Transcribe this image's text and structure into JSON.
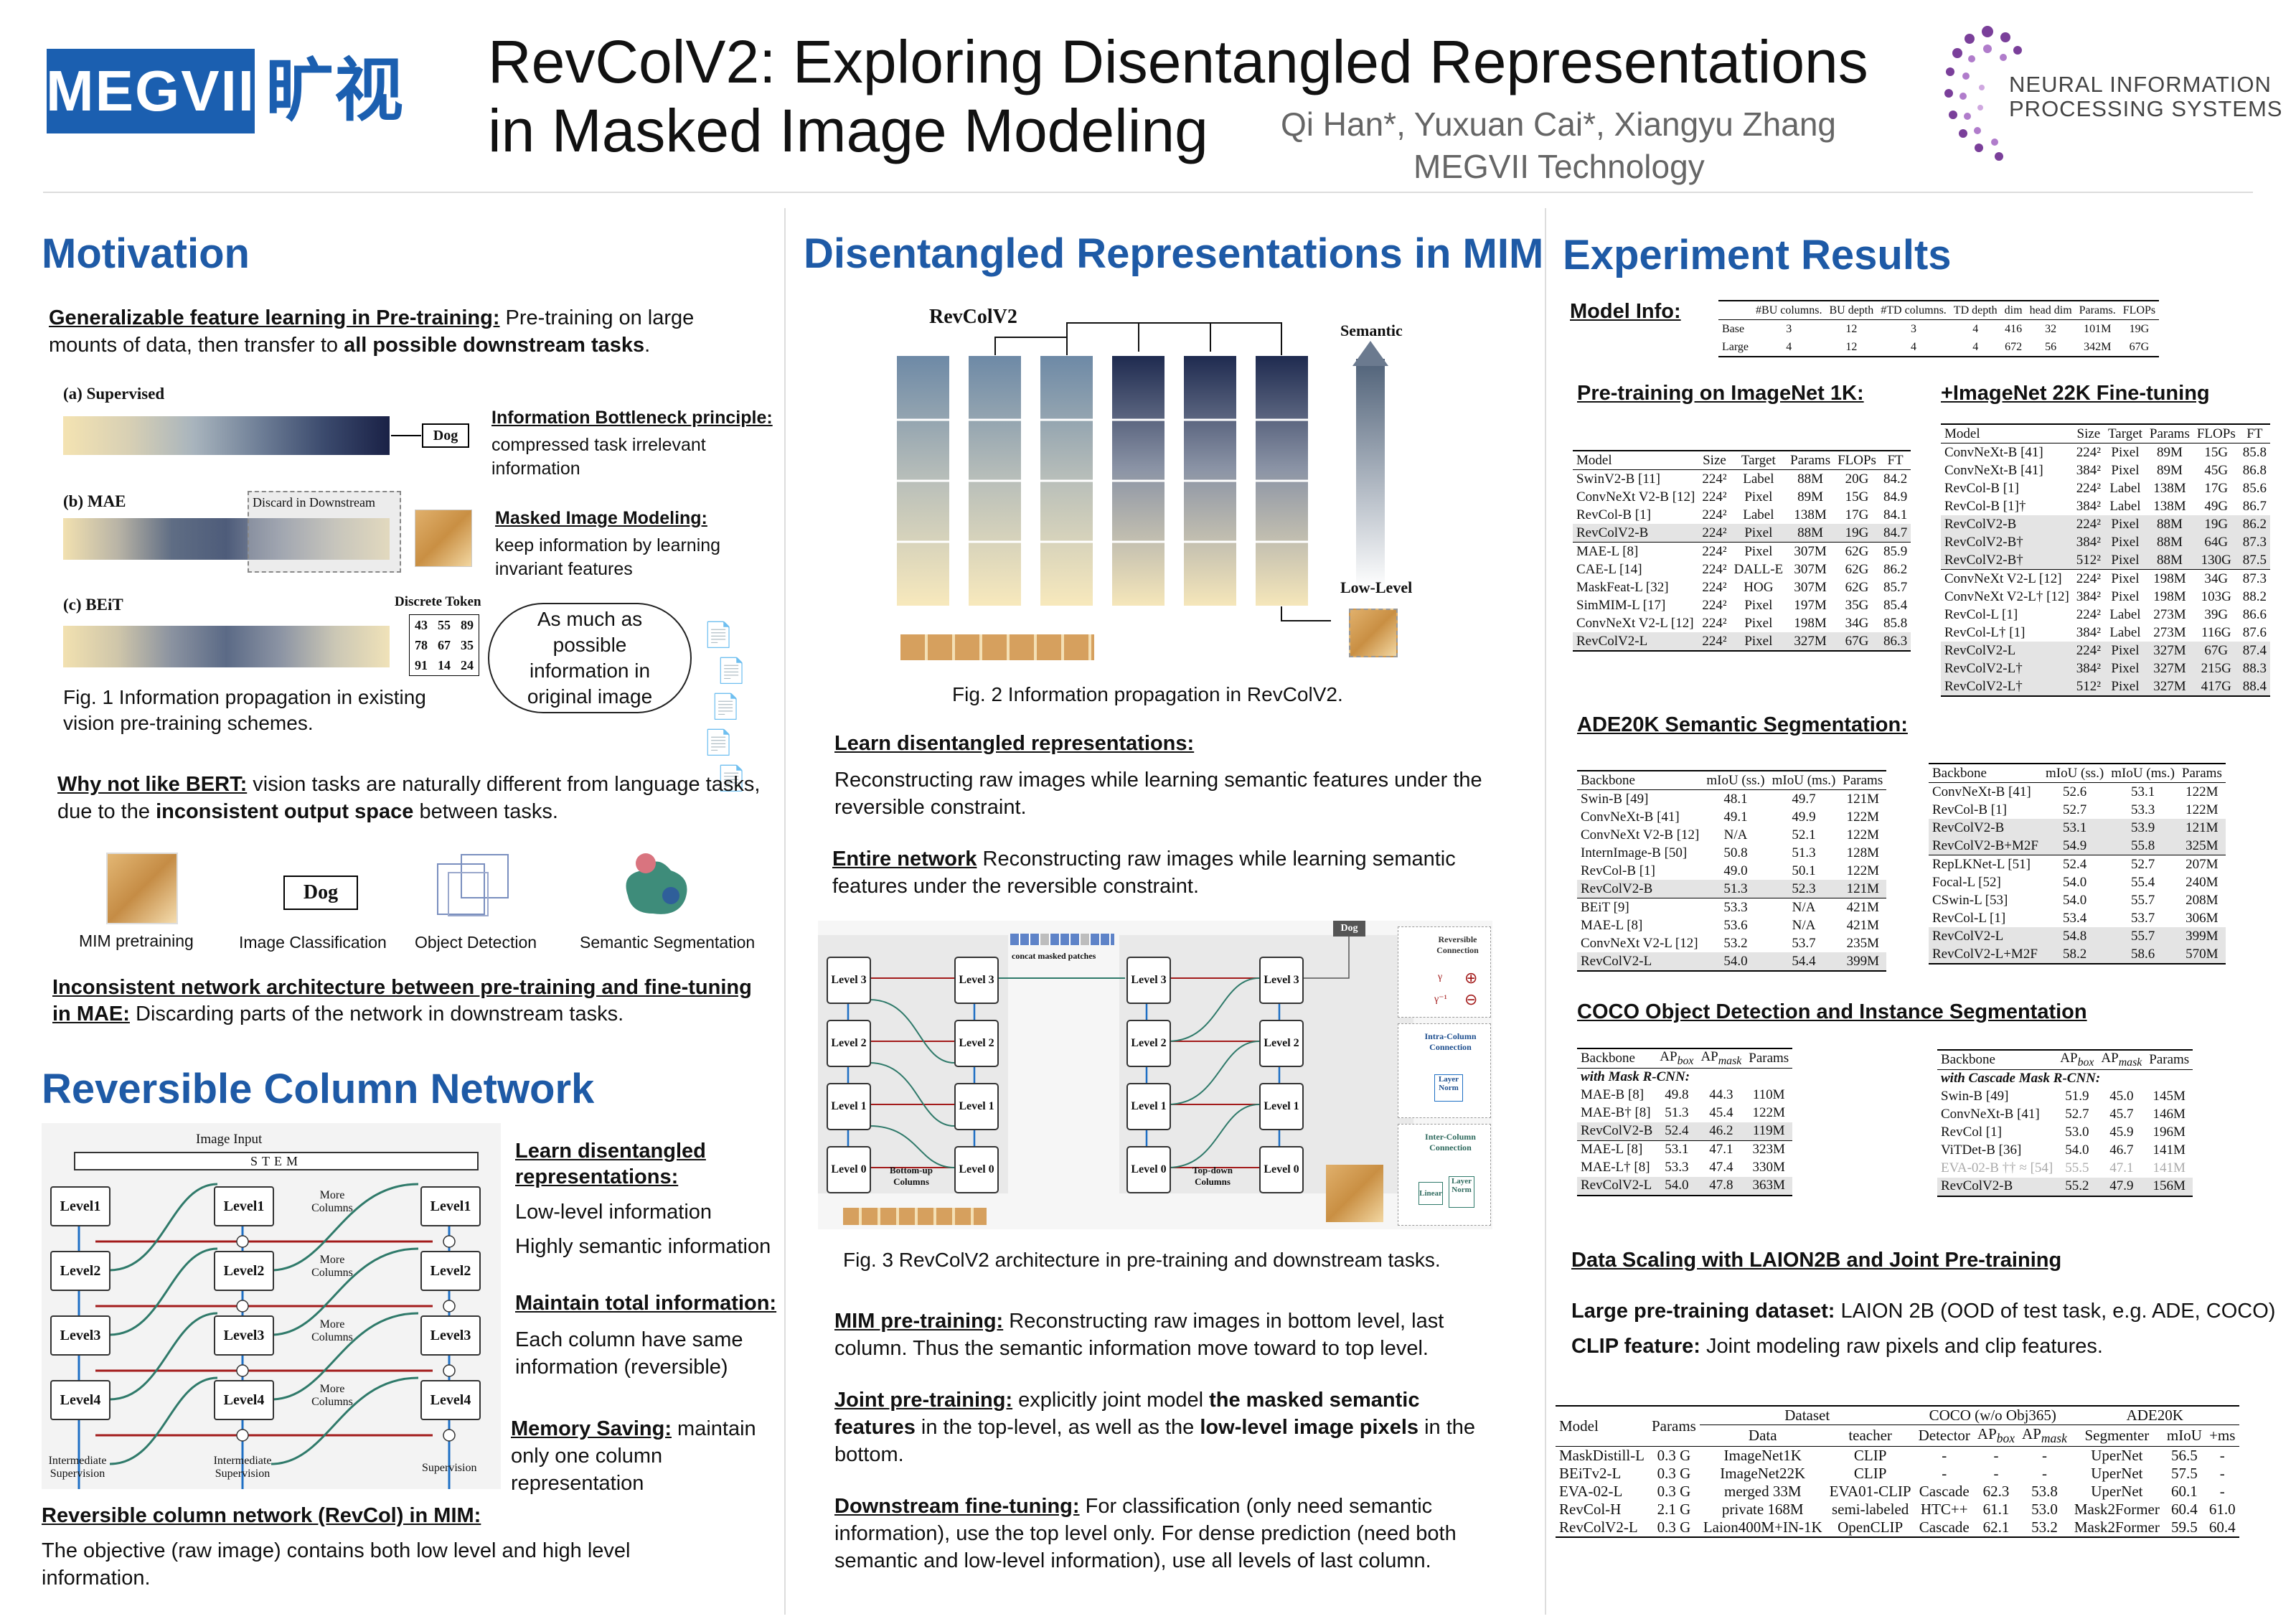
{
  "header": {
    "logo_text": "MEGVII",
    "logo_cn": "旷视",
    "title_line1": "RevColV2: Exploring Disentangled Representations",
    "title_line2": "in Masked Image Modeling",
    "authors": "Qi Han*, Yuxuan Cai*,  Xiangyu Zhang",
    "affiliation": "MEGVII Technology",
    "neurips_line1": "NEURAL INFORMATION",
    "neurips_line2": "PROCESSING SYSTEMS"
  },
  "motivation": {
    "title": "Motivation",
    "gen_label": "Generalizable feature learning in Pre-training:",
    "gen_text1": " Pre-training on large",
    "gen_text2": "mounts of data, then transfer to ",
    "gen_bold": "all possible downstream tasks",
    "gen_end": ".",
    "fig1": {
      "sup": "(a) Supervised",
      "dog": "Dog",
      "mae": "(b) MAE",
      "discard": "Discard in Downstream",
      "beit": "(c) BEiT",
      "discrete": "Discrete Token",
      "tokens": [
        "43",
        "55",
        "89",
        "78",
        "67",
        "35",
        "91",
        "14",
        "24"
      ],
      "bubble": "As much as possible information in original image",
      "caption": "Fig. 1 Information propagation in existing vision pre-training schemes."
    },
    "ib_title": "Information Bottleneck principle:",
    "ib_text": "compressed task irrelevant information",
    "mim_title": "Masked Image Modeling:",
    "mim_text": "keep information by learning invariant features",
    "bert_label": "Why not like BERT:",
    "bert_text1": " vision tasks are naturally different from language tasks,",
    "bert_text2": "due to the ",
    "bert_bold": "inconsistent output space",
    "bert_end": " between tasks.",
    "tasks": [
      "MIM pretraining",
      "Image Classification",
      "Object Detection",
      "Semantic Segmentation"
    ],
    "task_dog": "Dog",
    "incons_title1": "Inconsistent network architecture between pre-training and fine-tuning",
    "incons_title2": "in MAE:",
    "incons_text": " Discarding parts of the network in downstream tasks."
  },
  "revcol": {
    "title": "Reversible Column Network",
    "image_input": "Image Input",
    "stem": "STEM",
    "levels": [
      "Level1",
      "Level2",
      "Level3",
      "Level4"
    ],
    "more": "More Columns",
    "inter_sup": "Intermediate Supervision",
    "sup": "Supervision",
    "learn_title": "Learn disentangled representations:",
    "low": "Low-level information",
    "high": "Highly semantic information",
    "maintain_title": "Maintain total information:",
    "maintain_text": "Each column have same information (reversible)",
    "mem_title": "Memory Saving:",
    "mem_text": " maintain only one column representation",
    "mim_title": "Reversible column network (RevCol) in MIM:",
    "mim_text": "The objective (raw image) contains both low level and high level information."
  },
  "dis": {
    "title": "Disentangled Representations in MIM",
    "fig2_label": "RevColV2",
    "semantic": "Semantic",
    "lowlevel": "Low-Level",
    "fig2_caption": "Fig. 2 Information propagation in RevColV2.",
    "learn_title": "Learn disentangled representations:",
    "learn_text": "Reconstructing raw images while learning semantic features under the reversible constraint.",
    "entire_title": "Entire network",
    "entire_text": " Reconstructing raw images while learning semantic features under the reversible constraint.",
    "fig3": {
      "concat": "concat masked patches",
      "dog": "Dog",
      "levels": [
        "Level 3",
        "Level 2",
        "Level 1",
        "Level 0"
      ],
      "bottom": "Bottom-up Columns",
      "topdown": "Top-down Columns",
      "rev_conn": "Reversible Connection",
      "gamma1": "γ",
      "gamma2": "γ⁻¹",
      "intra": "Intra-Column Connection",
      "layer_norm": "Layer Norm",
      "inter": "Inter-Column Connection",
      "linear": "Linear"
    },
    "fig3_caption": "Fig. 3 RevColV2 architecture in pre-training and downstream tasks.",
    "mim_title": "MIM pre-training:",
    "mim_text": " Reconstructing raw images in bottom level, last column. Thus the semantic information move toward to top level.",
    "joint_title": "Joint pre-training:",
    "joint_t1": " explicitly joint model ",
    "joint_b1": "the masked semantic features",
    "joint_t2": " in the top-level, as well as the ",
    "joint_b2": "low-level image pixels",
    "joint_t3": " in the bottom.",
    "down_title": "Downstream fine-tuning:",
    "down_text": " For classification (only need semantic information), use the top level only. For dense prediction (need both semantic and low-level information), use all levels of last column."
  },
  "exp": {
    "title": "Experiment Results",
    "model_info": "Model Info:",
    "mi_head": [
      "#BU columns.",
      "BU depth",
      "#TD columns.",
      "TD depth",
      "dim",
      "head dim",
      "Params.",
      "FLOPs"
    ],
    "mi_rows": [
      [
        "Base",
        "3",
        "12",
        "3",
        "4",
        "416",
        "32",
        "101M",
        "19G"
      ],
      [
        "Large",
        "4",
        "12",
        "4",
        "4",
        "672",
        "56",
        "342M",
        "67G"
      ]
    ],
    "pt_title": "Pre-training on ImageNet 1K:",
    "ft22_title": "+ImageNet 22K Fine-tuning",
    "pt_head": [
      "Model",
      "Size",
      "Target",
      "Params",
      "FLOPs",
      "FT"
    ],
    "pt_rows": [
      [
        "SwinV2-B [11]",
        "224²",
        "Label",
        "88M",
        "20G",
        "84.2"
      ],
      [
        "ConvNeXt V2-B [12]",
        "224²",
        "Pixel",
        "89M",
        "15G",
        "84.9"
      ],
      [
        "RevCol-B [1]",
        "224²",
        "Label",
        "138M",
        "17G",
        "84.1"
      ],
      [
        "RevColV2-B",
        "224²",
        "Pixel",
        "88M",
        "19G",
        "84.7"
      ],
      [
        "MAE-L [8]",
        "224²",
        "Pixel",
        "307M",
        "62G",
        "85.9"
      ],
      [
        "CAE-L [14]",
        "224²",
        "DALL-E",
        "307M",
        "62G",
        "86.2"
      ],
      [
        "MaskFeat-L [32]",
        "224²",
        "HOG",
        "307M",
        "62G",
        "85.7"
      ],
      [
        "SimMIM-L [17]",
        "224²",
        "Pixel",
        "197M",
        "35G",
        "85.4"
      ],
      [
        "ConvNeXt V2-L [12]",
        "224²",
        "Pixel",
        "198M",
        "34G",
        "85.8"
      ],
      [
        "RevColV2-L",
        "224²",
        "Pixel",
        "327M",
        "67G",
        "86.3"
      ]
    ],
    "ft_head": [
      "Model",
      "Size",
      "Target",
      "Params",
      "FLOPs",
      "FT"
    ],
    "ft_rows": [
      [
        "ConvNeXt-B [41]",
        "224²",
        "Pixel",
        "89M",
        "15G",
        "85.8"
      ],
      [
        "ConvNeXt-B [41]",
        "384²",
        "Pixel",
        "89M",
        "45G",
        "86.8"
      ],
      [
        "RevCol-B [1]",
        "224²",
        "Label",
        "138M",
        "17G",
        "85.6"
      ],
      [
        "RevCol-B [1]†",
        "384²",
        "Label",
        "138M",
        "49G",
        "86.7"
      ],
      [
        "RevColV2-B",
        "224²",
        "Pixel",
        "88M",
        "19G",
        "86.2"
      ],
      [
        "RevColV2-B†",
        "384²",
        "Pixel",
        "88M",
        "64G",
        "87.3"
      ],
      [
        "RevColV2-B†",
        "512²",
        "Pixel",
        "88M",
        "130G",
        "87.5"
      ],
      [
        "ConvNeXt V2-L [12]",
        "224²",
        "Pixel",
        "198M",
        "34G",
        "87.3"
      ],
      [
        "ConvNeXt V2-L† [12]",
        "384²",
        "Pixel",
        "198M",
        "103G",
        "88.2"
      ],
      [
        "RevCol-L [1]",
        "224²",
        "Label",
        "273M",
        "39G",
        "86.6"
      ],
      [
        "RevCol-L† [1]",
        "384²",
        "Label",
        "273M",
        "116G",
        "87.6"
      ],
      [
        "RevColV2-L",
        "224²",
        "Pixel",
        "327M",
        "67G",
        "87.4"
      ],
      [
        "RevColV2-L†",
        "384²",
        "Pixel",
        "327M",
        "215G",
        "88.3"
      ],
      [
        "RevColV2-L†",
        "512²",
        "Pixel",
        "327M",
        "417G",
        "88.4"
      ]
    ],
    "ade_title": "ADE20K Semantic Segmentation:",
    "ade_head": [
      "Backbone",
      "mIoU (ss.)",
      "mIoU (ms.)",
      "Params"
    ],
    "ade1_rows": [
      [
        "Swin-B [49]",
        "48.1",
        "49.7",
        "121M"
      ],
      [
        "ConvNeXt-B [41]",
        "49.1",
        "49.9",
        "122M"
      ],
      [
        "ConvNeXt V2-B [12]",
        "N/A",
        "52.1",
        "122M"
      ],
      [
        "InternImage-B [50]",
        "50.8",
        "51.3",
        "128M"
      ],
      [
        "RevCol-B [1]",
        "49.0",
        "50.1",
        "122M"
      ],
      [
        "RevColV2-B",
        "51.3",
        "52.3",
        "121M"
      ],
      [
        "BEiT [9]",
        "53.3",
        "N/A",
        "421M"
      ],
      [
        "MAE-L [8]",
        "53.6",
        "N/A",
        "421M"
      ],
      [
        "ConvNeXt V2-L [12]",
        "53.2",
        "53.7",
        "235M"
      ],
      [
        "RevColV2-L",
        "54.0",
        "54.4",
        "399M"
      ]
    ],
    "ade2_rows": [
      [
        "ConvNeXt-B [41]",
        "52.6",
        "53.1",
        "122M"
      ],
      [
        "RevCol-B [1]",
        "52.7",
        "53.3",
        "122M"
      ],
      [
        "RevColV2-B",
        "53.1",
        "53.9",
        "121M"
      ],
      [
        "RevColV2-B+M2F",
        "54.9",
        "55.8",
        "325M"
      ],
      [
        "RepLKNet-L [51]",
        "52.4",
        "52.7",
        "207M"
      ],
      [
        "Focal-L [52]",
        "54.0",
        "55.4",
        "240M"
      ],
      [
        "CSwin-L [53]",
        "54.0",
        "55.7",
        "208M"
      ],
      [
        "RevCol-L [1]",
        "53.4",
        "53.7",
        "306M"
      ],
      [
        "RevColV2-L",
        "54.8",
        "55.7",
        "399M"
      ],
      [
        "RevColV2-L+M2F",
        "58.2",
        "58.6",
        "570M"
      ]
    ],
    "coco_title": "COCO Object Detection and Instance Segmentation",
    "coco_head": [
      "Backbone",
      "AP",
      "box",
      "AP",
      "mask",
      "Params"
    ],
    "coco1_sub": "with Mask R-CNN:",
    "coco1_rows": [
      [
        "MAE-B [8]",
        "49.8",
        "44.3",
        "110M"
      ],
      [
        "MAE-B† [8]",
        "51.3",
        "45.4",
        "122M"
      ],
      [
        "RevColV2-B",
        "52.4",
        "46.2",
        "119M"
      ],
      [
        "MAE-L [8]",
        "53.1",
        "47.1",
        "323M"
      ],
      [
        "MAE-L† [8]",
        "53.3",
        "47.4",
        "330M"
      ],
      [
        "RevColV2-L",
        "54.0",
        "47.8",
        "363M"
      ]
    ],
    "coco2_sub": "with Cascade Mask R-CNN:",
    "coco2_rows": [
      [
        "Swin-B [49]",
        "51.9",
        "45.0",
        "145M"
      ],
      [
        "ConvNeXt-B [41]",
        "52.7",
        "45.7",
        "146M"
      ],
      [
        "RevCol [1]",
        "53.0",
        "45.9",
        "196M"
      ],
      [
        "ViTDet-B [36]",
        "54.0",
        "46.7",
        "141M"
      ],
      [
        "EVA-02-B †† ≈ [54]",
        "55.5",
        "47.1",
        "141M"
      ],
      [
        "RevColV2-B",
        "55.2",
        "47.9",
        "156M"
      ]
    ],
    "scale_title": "Data Scaling with LAION2B and Joint Pre-training",
    "large_label": "Large pre-training dataset:",
    "large_text": " LAION 2B (OOD of test task, e.g. ADE, COCO)",
    "clip_label": "CLIP feature:",
    "clip_text": " Joint modeling raw pixels and clip features.",
    "sc_top": [
      "Model",
      "Params",
      "Dataset",
      "COCO (w/o Obj365)",
      "ADE20K"
    ],
    "sc_sub": [
      "Data",
      "teacher",
      "Detector",
      "AP",
      "box",
      "AP",
      "mask",
      "Segmenter",
      "mIoU",
      "+ms"
    ],
    "sc_rows": [
      [
        "MaskDistill-L",
        "0.3 G",
        "ImageNet1K",
        "CLIP",
        "-",
        "-",
        "-",
        "UperNet",
        "56.5",
        "-"
      ],
      [
        "BEiTv2-L",
        "0.3 G",
        "ImageNet22K",
        "CLIP",
        "-",
        "-",
        "-",
        "UperNet",
        "57.5",
        "-"
      ],
      [
        "EVA-02-L",
        "0.3 G",
        "merged 33M",
        "EVA01-CLIP",
        "Cascade",
        "62.3",
        "53.8",
        "UperNet",
        "60.1",
        "-"
      ],
      [
        "RevCol-H",
        "2.1 G",
        "private 168M",
        "semi-labeled",
        "HTC++",
        "61.1",
        "53.0",
        "Mask2Former",
        "60.4",
        "61.0"
      ],
      [
        "RevColV2-L",
        "0.3 G",
        "Laion400M+IN-1K",
        "OpenCLIP",
        "Cascade",
        "62.1",
        "53.2",
        "Mask2Former",
        "59.5",
        "60.4"
      ]
    ]
  },
  "colors": {
    "accent": "#1e5aa6",
    "megvii": "#1b5fb0",
    "neurips": "#7a3f9a"
  }
}
